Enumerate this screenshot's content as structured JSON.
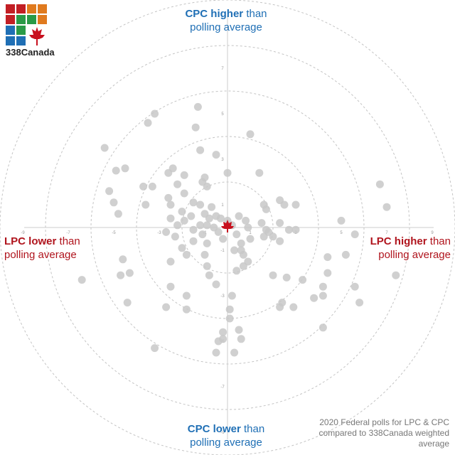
{
  "logo": {
    "text": "338Canada"
  },
  "labels": {
    "top": {
      "strong": "CPC higher",
      "rest": " than",
      "line2": "polling average"
    },
    "bottom": {
      "strong": "CPC lower",
      "rest": " than",
      "line2": "polling average"
    },
    "left": {
      "strong": "LPC lower",
      "rest": " than",
      "line2": "polling average"
    },
    "right": {
      "strong": "LPC higher",
      "rest": " than",
      "line2": "polling average"
    }
  },
  "note": "2020 Federal polls for LPC & CPC compared to 338Canada weighted average",
  "colors": {
    "cpc_blue": "#1f6fb5",
    "lpc_red": "#b0141d",
    "point": "#c8c8c8",
    "maple": "#c8101e"
  },
  "chart_data": {
    "type": "scatter",
    "xlabel": "",
    "ylabel": "",
    "xlim": [
      -9,
      9
    ],
    "ylim": [
      -9,
      9
    ],
    "x_ticks": [
      -9,
      -7,
      -5,
      -3,
      -1,
      1,
      3,
      5,
      7,
      9
    ],
    "y_ticks": [
      -9,
      -7,
      -5,
      -3,
      -1,
      1,
      3,
      5,
      7
    ],
    "rings": [
      2,
      4,
      6,
      8,
      10
    ],
    "center_marker": "maple-leaf",
    "series": [
      {
        "points": [
          [
            -3.2,
            5.0
          ],
          [
            -3.5,
            4.6
          ],
          [
            -1.3,
            5.3
          ],
          [
            -1.4,
            4.4
          ],
          [
            1.0,
            4.1
          ],
          [
            -5.4,
            3.5
          ],
          [
            -4.5,
            2.6
          ],
          [
            -1.2,
            3.4
          ],
          [
            -0.5,
            3.2
          ],
          [
            -2.4,
            2.6
          ],
          [
            -2.6,
            2.4
          ],
          [
            -3.7,
            1.8
          ],
          [
            -4.9,
            2.5
          ],
          [
            -5.2,
            1.6
          ],
          [
            -5.0,
            1.1
          ],
          [
            -4.8,
            0.6
          ],
          [
            -3.3,
            1.8
          ],
          [
            -1.9,
            2.3
          ],
          [
            -2.2,
            1.9
          ],
          [
            -1.1,
            2.0
          ],
          [
            -1.0,
            2.2
          ],
          [
            -0.9,
            1.8
          ],
          [
            0.0,
            2.4
          ],
          [
            1.4,
            2.4
          ],
          [
            -2.6,
            1.3
          ],
          [
            -2.5,
            1.0
          ],
          [
            -3.6,
            1.0
          ],
          [
            -1.9,
            1.5
          ],
          [
            -1.5,
            1.1
          ],
          [
            -1.2,
            1.0
          ],
          [
            -0.7,
            0.9
          ],
          [
            -0.5,
            0.5
          ],
          [
            -1.6,
            0.5
          ],
          [
            -2.0,
            0.7
          ],
          [
            -2.5,
            0.4
          ],
          [
            -1.9,
            0.3
          ],
          [
            -1.0,
            0.6
          ],
          [
            -0.8,
            0.4
          ],
          [
            -0.3,
            0.4
          ],
          [
            0.0,
            0.3
          ],
          [
            0.5,
            0.5
          ],
          [
            0.8,
            0.3
          ],
          [
            -1.2,
            0.1
          ],
          [
            -0.9,
            0.1
          ],
          [
            -0.6,
            0.0
          ],
          [
            -1.1,
            -0.3
          ],
          [
            -0.4,
            -0.2
          ],
          [
            0.2,
            0.1
          ],
          [
            0.9,
            0.0
          ],
          [
            1.5,
            0.2
          ],
          [
            1.7,
            0.8
          ],
          [
            1.6,
            1.0
          ],
          [
            2.3,
            1.2
          ],
          [
            2.5,
            1.0
          ],
          [
            3.0,
            1.0
          ],
          [
            2.3,
            0.2
          ],
          [
            2.7,
            -0.1
          ],
          [
            2.0,
            -0.4
          ],
          [
            2.3,
            -0.6
          ],
          [
            1.0,
            -0.5
          ],
          [
            1.6,
            -0.4
          ],
          [
            1.7,
            -0.1
          ],
          [
            1.8,
            -0.2
          ],
          [
            -0.2,
            -0.5
          ],
          [
            0.4,
            -0.3
          ],
          [
            0.6,
            -0.7
          ],
          [
            -0.9,
            -0.7
          ],
          [
            -2.3,
            -0.4
          ],
          [
            -2.7,
            -0.2
          ],
          [
            -2.2,
            0.1
          ],
          [
            -1.5,
            -0.1
          ],
          [
            -1.5,
            -0.6
          ],
          [
            -2.0,
            -0.9
          ],
          [
            -1.8,
            -1.2
          ],
          [
            -1.0,
            -1.2
          ],
          [
            -0.9,
            -1.7
          ],
          [
            -0.8,
            -2.1
          ],
          [
            -0.5,
            -2.5
          ],
          [
            0.3,
            -1.0
          ],
          [
            0.6,
            -1.0
          ],
          [
            0.7,
            -1.2
          ],
          [
            0.9,
            -1.5
          ],
          [
            0.7,
            -1.7
          ],
          [
            0.4,
            -1.9
          ],
          [
            -2.5,
            -1.5
          ],
          [
            -4.6,
            -1.4
          ],
          [
            -4.3,
            -2.0
          ],
          [
            -4.7,
            -2.1
          ],
          [
            -6.4,
            -2.3
          ],
          [
            -4.4,
            -3.3
          ],
          [
            -2.5,
            -2.6
          ],
          [
            -1.8,
            -3.0
          ],
          [
            -1.8,
            -3.6
          ],
          [
            -2.7,
            -3.5
          ],
          [
            0.2,
            -3.0
          ],
          [
            0.1,
            -3.6
          ],
          [
            0.1,
            -4.0
          ],
          [
            -0.2,
            -4.6
          ],
          [
            0.5,
            -4.5
          ],
          [
            0.6,
            -4.9
          ],
          [
            -0.2,
            -4.9
          ],
          [
            -0.4,
            -5.0
          ],
          [
            -3.2,
            -5.3
          ],
          [
            -0.5,
            -5.5
          ],
          [
            0.3,
            -5.5
          ],
          [
            2.0,
            -2.1
          ],
          [
            2.6,
            -2.2
          ],
          [
            3.3,
            -2.3
          ],
          [
            2.4,
            -3.3
          ],
          [
            2.3,
            -3.5
          ],
          [
            2.9,
            -3.5
          ],
          [
            3.8,
            -3.1
          ],
          [
            4.2,
            -3.0
          ],
          [
            4.2,
            -2.6
          ],
          [
            4.4,
            -2.0
          ],
          [
            4.4,
            -1.3
          ],
          [
            5.2,
            -1.2
          ],
          [
            5.6,
            -2.6
          ],
          [
            5.8,
            -3.3
          ],
          [
            7.4,
            -2.1
          ],
          [
            4.2,
            -4.4
          ],
          [
            5.0,
            0.3
          ],
          [
            5.6,
            -0.3
          ],
          [
            6.7,
            1.9
          ],
          [
            7.0,
            0.9
          ],
          [
            3.0,
            -0.1
          ]
        ]
      }
    ]
  }
}
